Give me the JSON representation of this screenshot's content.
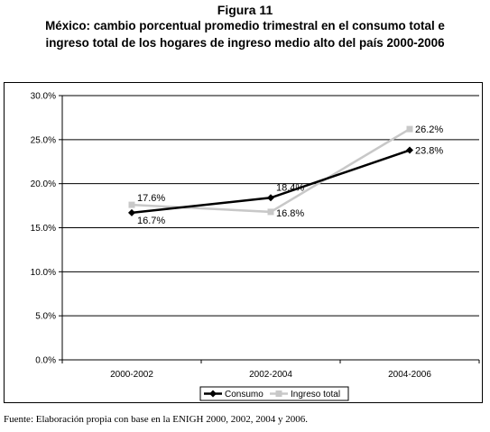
{
  "figure": {
    "label": "Figura 11",
    "title_line1": "México: cambio porcentual promedio trimestral en el consumo total e",
    "title_line2": "ingreso total de los hogares de ingreso medio alto del país 2000-2006"
  },
  "source": "Fuente: Elaboración propia con base en la ENIGH 2000, 2002, 2004 y 2006.",
  "chart_data": {
    "type": "line",
    "categories": [
      "2000-2002",
      "2002-2004",
      "2004-2006"
    ],
    "ylim": [
      0,
      30
    ],
    "yticks": [
      0,
      5,
      10,
      15,
      20,
      25,
      30
    ],
    "ytick_labels": [
      "0.0%",
      "5.0%",
      "10.0%",
      "15.0%",
      "20.0%",
      "25.0%",
      "30.0%"
    ],
    "grid": true,
    "legend_position": "bottom",
    "series": [
      {
        "name": "Consumo",
        "values": [
          16.7,
          18.4,
          23.8
        ],
        "labels": [
          "16.7%",
          "18.4%",
          "23.8%"
        ],
        "color": "#000000",
        "marker": "diamond"
      },
      {
        "name": "Ingreso total",
        "values": [
          17.6,
          16.8,
          26.2
        ],
        "labels": [
          "17.6%",
          "16.8%",
          "26.2%"
        ],
        "color": "#c8c8c8",
        "marker": "square"
      }
    ]
  }
}
